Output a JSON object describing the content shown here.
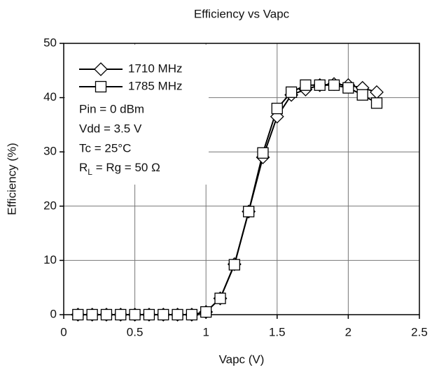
{
  "chart_data": {
    "type": "line",
    "title": "Efficiency vs Vapc",
    "xlabel": "Vapc (V)",
    "ylabel": "Efficiency (%)",
    "x": [
      0.1,
      0.2,
      0.3,
      0.4,
      0.5,
      0.6,
      0.7,
      0.8,
      0.9,
      1.0,
      1.1,
      1.2,
      1.3,
      1.4,
      1.5,
      1.6,
      1.7,
      1.8,
      1.9,
      2.0,
      2.1,
      2.2
    ],
    "series": [
      {
        "name": "1710 MHz",
        "color": "#000000",
        "marker": "diamond",
        "values": [
          0,
          0,
          0,
          0,
          0,
          0,
          0,
          0,
          0,
          0.5,
          3,
          9.3,
          19,
          29,
          36.5,
          40.5,
          41.5,
          42.3,
          42.5,
          42.3,
          41.8,
          41
        ]
      },
      {
        "name": "1785 MHz",
        "color": "#000000",
        "marker": "square",
        "values": [
          0,
          0,
          0,
          0,
          0,
          0,
          0,
          0,
          0,
          0.5,
          3,
          9.2,
          19,
          29.8,
          38,
          41,
          42.3,
          42.3,
          42.3,
          41.8,
          40.5,
          39
        ]
      }
    ],
    "annotations": [
      "Pin = 0 dBm",
      "Vdd = 3.5 V",
      "Tc = 25°C",
      {
        "text": "R",
        "sub": "L",
        "rest": " = Rg = 50 Ω"
      }
    ],
    "xlim": [
      0,
      2.5
    ],
    "xticks": [
      0,
      0.5,
      1,
      1.5,
      2,
      2.5
    ],
    "ylim": [
      0,
      50
    ],
    "yticks": [
      0,
      10,
      20,
      30,
      40,
      50
    ],
    "grid": true,
    "legend": "upper left"
  }
}
